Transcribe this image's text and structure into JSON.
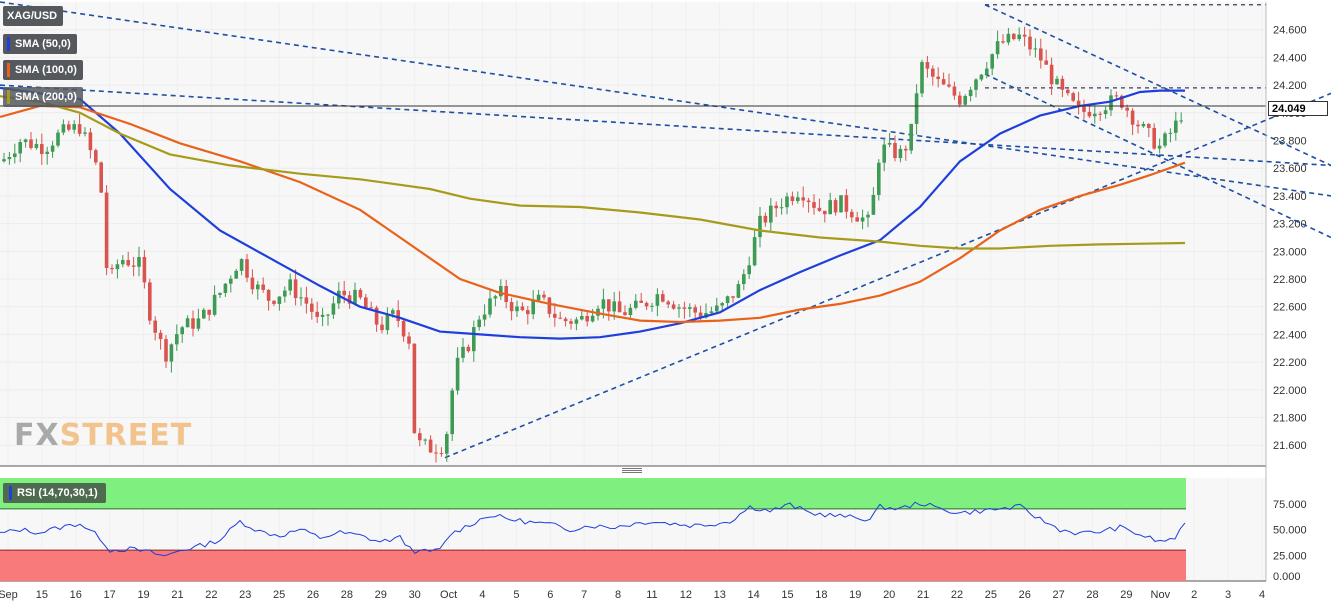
{
  "symbol": "XAG/USD",
  "indicators": [
    {
      "label": "SMA (50,0)",
      "color": "#1f3fdc"
    },
    {
      "label": "SMA (100,0)",
      "color": "#e9621b"
    },
    {
      "label": "SMA (200,0)",
      "color": "#a69b1b"
    }
  ],
  "rsi": {
    "label": "RSI (14,70,30,1)",
    "color": "#1f3fdc",
    "overbought": 70,
    "oversold": 30,
    "overbought_color": "#7ff07f",
    "oversold_color": "#f87a7a"
  },
  "last_price": "24.049",
  "watermark": {
    "fx": "FX",
    "street": "STREET"
  },
  "chart_data": {
    "type": "candlestick",
    "y_ticks": [
      "24.600",
      "24.400",
      "24.200",
      "24.000",
      "23.800",
      "23.600",
      "23.400",
      "23.200",
      "23.000",
      "22.800",
      "22.600",
      "22.400",
      "22.200",
      "22.000",
      "21.800",
      "21.600"
    ],
    "ylim": [
      21.45,
      24.8
    ],
    "x_ticks": [
      "Sep",
      "15",
      "16",
      "17",
      "19",
      "21",
      "22",
      "23",
      "25",
      "26",
      "28",
      "29",
      "30",
      "Oct",
      "4",
      "5",
      "6",
      "7",
      "8",
      "11",
      "12",
      "13",
      "14",
      "15",
      "18",
      "19",
      "20",
      "21",
      "22",
      "25",
      "26",
      "27",
      "28",
      "29",
      "Nov",
      "2",
      "3",
      "4"
    ],
    "rsi_ticks": [
      "75.000",
      "50.000",
      "25.000",
      "0.000"
    ],
    "rsi_ylim": [
      0,
      100
    ],
    "last_price": 24.049,
    "horizontal_levels": [
      24.78,
      24.18
    ],
    "trendlines": [
      {
        "from": [
          0,
          24.8
        ],
        "to": [
          1331,
          23.4
        ],
        "style": "dashed"
      },
      {
        "from": [
          0,
          24.2
        ],
        "to": [
          1331,
          23.62
        ],
        "style": "dashed"
      },
      {
        "from": [
          445,
          21.51
        ],
        "to": [
          1331,
          24.14
        ],
        "style": "dashed"
      },
      {
        "from": [
          985,
          24.78
        ],
        "to": [
          1331,
          23.62
        ],
        "style": "dashed"
      },
      {
        "from": [
          985,
          24.28
        ],
        "to": [
          1331,
          23.1
        ],
        "style": "dashed"
      }
    ],
    "series": [
      {
        "name": "SMA (50,0)",
        "color": "#1f3fdc",
        "points": [
          [
            0,
            24.18
          ],
          [
            80,
            24.1
          ],
          [
            120,
            23.85
          ],
          [
            170,
            23.45
          ],
          [
            220,
            23.15
          ],
          [
            270,
            22.95
          ],
          [
            320,
            22.75
          ],
          [
            360,
            22.6
          ],
          [
            400,
            22.52
          ],
          [
            440,
            22.42
          ],
          [
            480,
            22.4
          ],
          [
            520,
            22.38
          ],
          [
            560,
            22.37
          ],
          [
            600,
            22.38
          ],
          [
            640,
            22.42
          ],
          [
            680,
            22.48
          ],
          [
            720,
            22.56
          ],
          [
            760,
            22.72
          ],
          [
            800,
            22.85
          ],
          [
            840,
            22.97
          ],
          [
            880,
            23.08
          ],
          [
            920,
            23.32
          ],
          [
            960,
            23.65
          ],
          [
            1000,
            23.85
          ],
          [
            1040,
            23.98
          ],
          [
            1080,
            24.05
          ],
          [
            1110,
            24.08
          ],
          [
            1140,
            24.15
          ],
          [
            1160,
            24.16
          ],
          [
            1185,
            24.16
          ]
        ]
      },
      {
        "name": "SMA (100,0)",
        "color": "#e9621b",
        "points": [
          [
            0,
            23.97
          ],
          [
            40,
            24.05
          ],
          [
            80,
            24.04
          ],
          [
            130,
            23.92
          ],
          [
            180,
            23.78
          ],
          [
            240,
            23.65
          ],
          [
            300,
            23.5
          ],
          [
            360,
            23.3
          ],
          [
            410,
            23.05
          ],
          [
            460,
            22.8
          ],
          [
            500,
            22.7
          ],
          [
            550,
            22.62
          ],
          [
            600,
            22.55
          ],
          [
            640,
            22.5
          ],
          [
            680,
            22.49
          ],
          [
            720,
            22.5
          ],
          [
            760,
            22.52
          ],
          [
            800,
            22.58
          ],
          [
            840,
            22.62
          ],
          [
            880,
            22.68
          ],
          [
            920,
            22.78
          ],
          [
            960,
            22.95
          ],
          [
            1000,
            23.15
          ],
          [
            1040,
            23.3
          ],
          [
            1080,
            23.4
          ],
          [
            1120,
            23.48
          ],
          [
            1150,
            23.55
          ],
          [
            1185,
            23.64
          ]
        ]
      },
      {
        "name": "SMA (200,0)",
        "color": "#a69b1b",
        "points": [
          [
            0,
            24.12
          ],
          [
            40,
            24.08
          ],
          [
            80,
            24.0
          ],
          [
            120,
            23.85
          ],
          [
            170,
            23.7
          ],
          [
            230,
            23.62
          ],
          [
            300,
            23.56
          ],
          [
            360,
            23.52
          ],
          [
            400,
            23.48
          ],
          [
            430,
            23.45
          ],
          [
            470,
            23.38
          ],
          [
            520,
            23.33
          ],
          [
            580,
            23.32
          ],
          [
            640,
            23.28
          ],
          [
            700,
            23.23
          ],
          [
            760,
            23.15
          ],
          [
            820,
            23.1
          ],
          [
            880,
            23.07
          ],
          [
            920,
            23.04
          ],
          [
            960,
            23.02
          ],
          [
            1000,
            23.02
          ],
          [
            1050,
            23.04
          ],
          [
            1100,
            23.05
          ],
          [
            1185,
            23.06
          ]
        ]
      }
    ],
    "candles_note": "close path used to synthesize OHLC bars",
    "close_path": [
      [
        2,
        23.65
      ],
      [
        20,
        23.8
      ],
      [
        45,
        23.75
      ],
      [
        60,
        23.85
      ],
      [
        80,
        23.9
      ],
      [
        100,
        23.55
      ],
      [
        108,
        22.75
      ],
      [
        120,
        22.95
      ],
      [
        140,
        22.9
      ],
      [
        150,
        22.55
      ],
      [
        165,
        22.25
      ],
      [
        180,
        22.45
      ],
      [
        200,
        22.5
      ],
      [
        220,
        22.7
      ],
      [
        240,
        22.95
      ],
      [
        255,
        22.75
      ],
      [
        270,
        22.65
      ],
      [
        290,
        22.75
      ],
      [
        310,
        22.6
      ],
      [
        320,
        22.45
      ],
      [
        340,
        22.7
      ],
      [
        360,
        22.65
      ],
      [
        380,
        22.45
      ],
      [
        395,
        22.55
      ],
      [
        410,
        22.35
      ],
      [
        415,
        21.62
      ],
      [
        430,
        21.58
      ],
      [
        445,
        21.6
      ],
      [
        455,
        22.15
      ],
      [
        470,
        22.35
      ],
      [
        480,
        22.55
      ],
      [
        500,
        22.7
      ],
      [
        520,
        22.55
      ],
      [
        540,
        22.65
      ],
      [
        560,
        22.5
      ],
      [
        580,
        22.5
      ],
      [
        600,
        22.65
      ],
      [
        620,
        22.55
      ],
      [
        640,
        22.6
      ],
      [
        660,
        22.7
      ],
      [
        680,
        22.6
      ],
      [
        700,
        22.55
      ],
      [
        720,
        22.58
      ],
      [
        740,
        22.75
      ],
      [
        760,
        23.2
      ],
      [
        780,
        23.35
      ],
      [
        800,
        23.45
      ],
      [
        820,
        23.3
      ],
      [
        840,
        23.35
      ],
      [
        860,
        23.25
      ],
      [
        870,
        23.2
      ],
      [
        880,
        23.75
      ],
      [
        900,
        23.7
      ],
      [
        910,
        23.8
      ],
      [
        920,
        24.35
      ],
      [
        940,
        24.2
      ],
      [
        960,
        24.1
      ],
      [
        980,
        24.3
      ],
      [
        1000,
        24.5
      ],
      [
        1020,
        24.55
      ],
      [
        1040,
        24.4
      ],
      [
        1060,
        24.15
      ],
      [
        1080,
        24.0
      ],
      [
        1100,
        24.05
      ],
      [
        1120,
        24.1
      ],
      [
        1140,
        23.9
      ],
      [
        1160,
        23.75
      ],
      [
        1175,
        23.9
      ],
      [
        1185,
        24.05
      ]
    ],
    "rsi_path": [
      [
        0,
        46
      ],
      [
        20,
        50
      ],
      [
        40,
        47
      ],
      [
        60,
        52
      ],
      [
        80,
        56
      ],
      [
        100,
        42
      ],
      [
        110,
        30
      ],
      [
        130,
        31
      ],
      [
        150,
        28
      ],
      [
        165,
        24
      ],
      [
        180,
        30
      ],
      [
        200,
        34
      ],
      [
        220,
        40
      ],
      [
        240,
        58
      ],
      [
        260,
        48
      ],
      [
        280,
        44
      ],
      [
        300,
        50
      ],
      [
        320,
        42
      ],
      [
        340,
        47
      ],
      [
        360,
        44
      ],
      [
        380,
        38
      ],
      [
        400,
        42
      ],
      [
        412,
        30
      ],
      [
        420,
        28
      ],
      [
        440,
        30
      ],
      [
        450,
        45
      ],
      [
        470,
        55
      ],
      [
        490,
        64
      ],
      [
        510,
        60
      ],
      [
        530,
        57
      ],
      [
        550,
        55
      ],
      [
        570,
        50
      ],
      [
        590,
        54
      ],
      [
        610,
        52
      ],
      [
        630,
        55
      ],
      [
        650,
        58
      ],
      [
        670,
        56
      ],
      [
        690,
        54
      ],
      [
        710,
        55
      ],
      [
        730,
        58
      ],
      [
        750,
        72
      ],
      [
        770,
        68
      ],
      [
        790,
        74
      ],
      [
        810,
        66
      ],
      [
        830,
        64
      ],
      [
        850,
        62
      ],
      [
        870,
        60
      ],
      [
        880,
        72
      ],
      [
        900,
        70
      ],
      [
        920,
        76
      ],
      [
        940,
        70
      ],
      [
        960,
        66
      ],
      [
        980,
        68
      ],
      [
        1000,
        70
      ],
      [
        1020,
        72
      ],
      [
        1040,
        60
      ],
      [
        1060,
        50
      ],
      [
        1080,
        46
      ],
      [
        1100,
        48
      ],
      [
        1120,
        52
      ],
      [
        1140,
        45
      ],
      [
        1160,
        38
      ],
      [
        1175,
        42
      ],
      [
        1185,
        54
      ]
    ]
  }
}
